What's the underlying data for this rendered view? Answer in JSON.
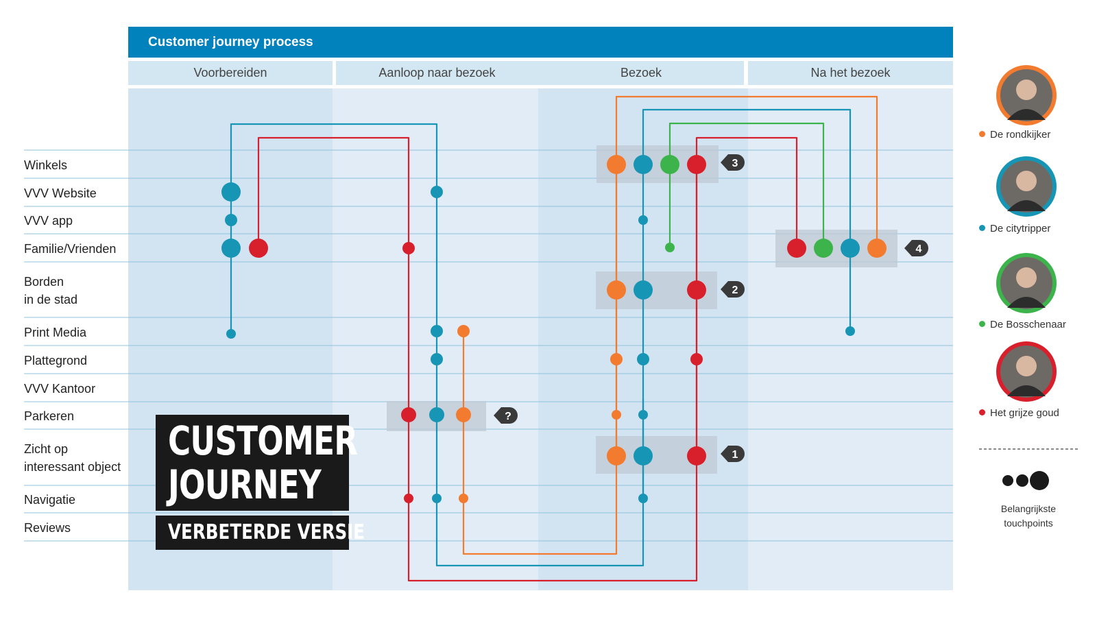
{
  "header": {
    "title": "Customer journey process"
  },
  "phases": [
    "Voorbereiden",
    "Aanloop naar bezoek",
    "Bezoek",
    "Na het bezoek"
  ],
  "rows": [
    {
      "label": "Winkels"
    },
    {
      "label": "VVV Website"
    },
    {
      "label": "VVV app"
    },
    {
      "label": "Familie/Vrienden"
    },
    {
      "label": "Borden\nin de stad"
    },
    {
      "label": "Print Media"
    },
    {
      "label": "Plattegrond"
    },
    {
      "label": "VVV Kantoor"
    },
    {
      "label": "Parkeren"
    },
    {
      "label": "Zicht op\ninteressant object"
    },
    {
      "label": "Navigatie"
    },
    {
      "label": "Reviews"
    }
  ],
  "title": {
    "line1": "CUSTOMER",
    "line2": "JOURNEY",
    "subtitle": "VERBETERDE VERSIE"
  },
  "colors": {
    "rondkijker": "#f27b2f",
    "citytripper": "#1795b4",
    "bosschenaar": "#3cb44b",
    "grijze_goud": "#d81f2c"
  },
  "personas": [
    {
      "key": "rondkijker",
      "name": "De rondkijker",
      "icon": "persona-photo-icon"
    },
    {
      "key": "citytripper",
      "name": "De citytripper",
      "icon": "persona-photo-icon"
    },
    {
      "key": "bosschenaar",
      "name": "De Bosschenaar",
      "icon": "persona-photo-icon"
    },
    {
      "key": "grijze_goud",
      "name": "Het grijze goud",
      "icon": "persona-photo-icon"
    }
  ],
  "badges": [
    {
      "label": "3"
    },
    {
      "label": "4"
    },
    {
      "label": "2"
    },
    {
      "label": "?"
    },
    {
      "label": "1"
    }
  ],
  "legend": {
    "line1": "Belangrijkste",
    "line2": "touchpoints"
  }
}
